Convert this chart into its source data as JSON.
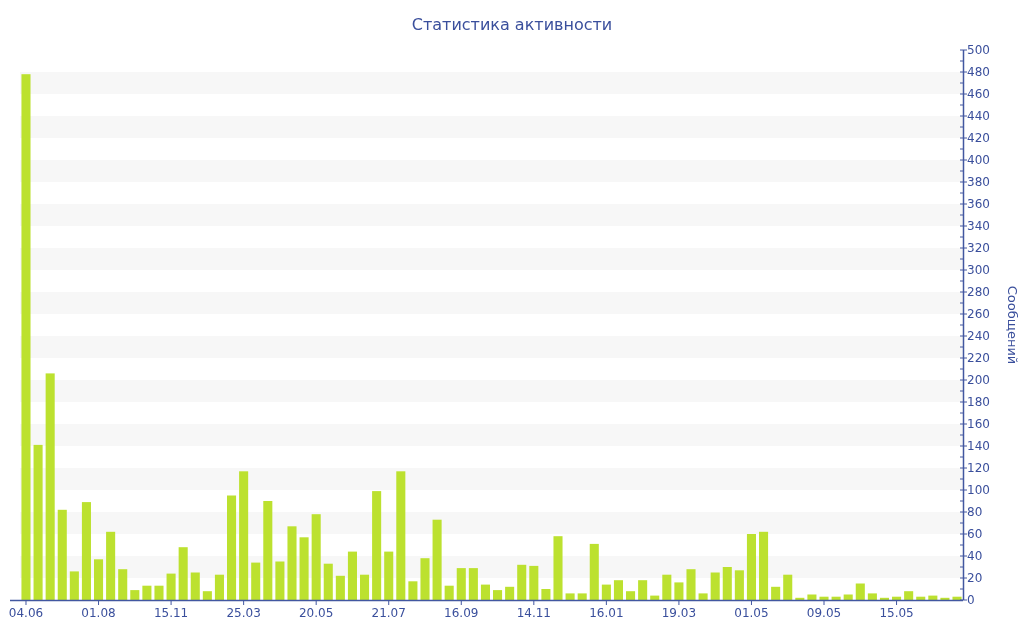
{
  "chart_data": {
    "type": "bar",
    "title": "Статистика активности",
    "ylabel": "Сообщений",
    "categories": [
      "04.06",
      null,
      null,
      null,
      null,
      null,
      "01.08",
      null,
      null,
      null,
      null,
      null,
      "15.11",
      null,
      null,
      null,
      null,
      null,
      "25.03",
      null,
      null,
      null,
      null,
      null,
      "20.05",
      null,
      null,
      null,
      null,
      null,
      "21.07",
      null,
      null,
      null,
      null,
      null,
      "16.09",
      null,
      null,
      null,
      null,
      null,
      "14.11",
      null,
      null,
      null,
      null,
      null,
      "16.01",
      null,
      null,
      null,
      null,
      null,
      "19.03",
      null,
      null,
      null,
      null,
      null,
      "01.05",
      null,
      null,
      null,
      null,
      null,
      "09.05",
      null,
      null,
      null,
      null,
      null,
      "15.05",
      null,
      null,
      null,
      null,
      null
    ],
    "values": [
      478,
      141,
      206,
      82,
      26,
      89,
      37,
      62,
      28,
      9,
      13,
      13,
      24,
      48,
      25,
      8,
      23,
      95,
      117,
      34,
      90,
      35,
      67,
      57,
      78,
      33,
      22,
      44,
      23,
      99,
      44,
      117,
      17,
      38,
      73,
      13,
      29,
      29,
      14,
      9,
      12,
      32,
      31,
      10,
      58,
      6,
      6,
      51,
      14,
      18,
      8,
      18,
      4,
      23,
      16,
      28,
      6,
      25,
      30,
      27,
      60,
      62,
      12,
      23,
      2,
      5,
      3,
      3,
      5,
      15,
      6,
      2,
      3,
      8,
      3,
      4,
      2,
      3
    ],
    "color": "#bce12f",
    "ylim": [
      0,
      500
    ],
    "yticks": [
      0,
      {
        "value": 10,
        "label": null
      },
      20,
      {
        "value": 30,
        "label": null
      },
      40,
      {
        "value": 50,
        "label": null
      },
      60,
      {
        "value": 70,
        "label": null
      },
      80,
      {
        "value": 90,
        "label": null
      },
      100,
      {
        "value": 110,
        "label": null
      },
      120,
      {
        "value": 130,
        "label": null
      },
      140,
      {
        "value": 150,
        "label": null
      },
      160,
      {
        "value": 170,
        "label": null
      },
      180,
      {
        "value": 190,
        "label": null
      },
      200,
      {
        "value": 210,
        "label": null
      },
      220,
      {
        "value": 230,
        "label": null
      },
      240,
      {
        "value": 250,
        "label": null
      },
      260,
      {
        "value": 270,
        "label": null
      },
      280,
      {
        "value": 290,
        "label": null
      },
      300,
      {
        "value": 310,
        "label": null
      },
      320,
      {
        "value": 330,
        "label": null
      },
      340,
      {
        "value": 350,
        "label": null
      },
      360,
      {
        "value": 370,
        "label": null
      },
      380,
      {
        "value": 390,
        "label": null
      },
      400,
      {
        "value": 410,
        "label": null
      },
      420,
      {
        "value": 430,
        "label": null
      },
      440,
      {
        "value": 450,
        "label": null
      },
      460,
      {
        "value": 470,
        "label": null
      },
      480,
      {
        "value": 490,
        "label": null
      },
      500
    ],
    "bands": [
      {
        "axis": "y",
        "from": 20,
        "to": 40,
        "color": "#f7f7f7"
      },
      {
        "axis": "y",
        "from": 60,
        "to": 80,
        "color": "#f7f7f7"
      },
      {
        "axis": "y",
        "from": 100,
        "to": 120,
        "color": "#f7f7f7"
      },
      {
        "axis": "y",
        "from": 140,
        "to": 160,
        "color": "#f7f7f7"
      },
      {
        "axis": "y",
        "from": 180,
        "to": 200,
        "color": "#f7f7f7"
      },
      {
        "axis": "y",
        "from": 220,
        "to": 240,
        "color": "#f7f7f7"
      },
      {
        "axis": "y",
        "from": 260,
        "to": 280,
        "color": "#f7f7f7"
      },
      {
        "axis": "y",
        "from": 300,
        "to": 320,
        "color": "#f7f7f7"
      },
      {
        "axis": "y",
        "from": 340,
        "to": 360,
        "color": "#f7f7f7"
      },
      {
        "axis": "y",
        "from": 380,
        "to": 400,
        "color": "#f7f7f7"
      },
      {
        "axis": "y",
        "from": 420,
        "to": 440,
        "color": "#f7f7f7"
      },
      {
        "axis": "y",
        "from": 460,
        "to": 480,
        "color": "#f7f7f7"
      }
    ]
  }
}
